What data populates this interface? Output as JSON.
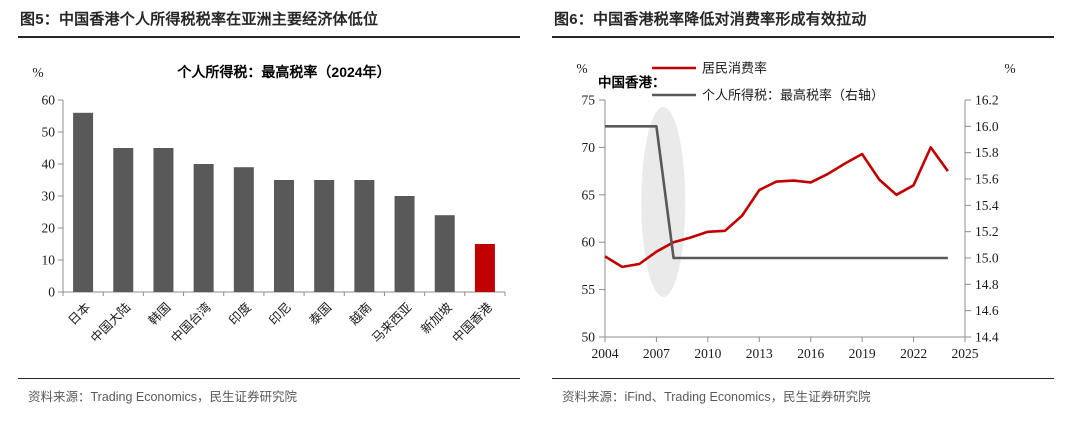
{
  "figure5": {
    "title": "图5：中国香港个人所得税税率在亚洲主要经济体低位",
    "source": "资料来源：Trading Economics，民生证券研究院"
  },
  "figure6": {
    "title": "图6：中国香港税率降低对消费率形成有效拉动",
    "source": "资料来源：iFind、Trading Economics，民生证券研究院"
  },
  "chart_data": [
    {
      "type": "bar",
      "title": "个人所得税：最高税率（2024年）",
      "unit": "%",
      "categories": [
        "日本",
        "中国大陆",
        "韩国",
        "中国台湾",
        "印度",
        "印尼",
        "泰国",
        "越南",
        "马来西亚",
        "新加坡",
        "中国香港"
      ],
      "values": [
        56,
        45,
        45,
        40,
        39,
        35,
        35,
        35,
        30,
        24,
        15
      ],
      "highlight_index": 10,
      "bar_color": "#595959",
      "highlight_color": "#c00000",
      "ylim": [
        0,
        60
      ],
      "yticks": [
        0,
        10,
        20,
        30,
        40,
        50,
        60
      ],
      "grid": false,
      "legend": "none"
    },
    {
      "type": "line",
      "annotation": "中国香港：",
      "left_unit": "%",
      "right_unit": "%",
      "x": [
        2004,
        2005,
        2006,
        2007,
        2008,
        2009,
        2010,
        2011,
        2012,
        2013,
        2014,
        2015,
        2016,
        2017,
        2018,
        2019,
        2020,
        2021,
        2022,
        2023,
        2024
      ],
      "series": [
        {
          "name": "居民消费率",
          "axis": "left",
          "color": "#c00000",
          "values": [
            58.5,
            57.4,
            57.7,
            59.0,
            60.0,
            60.5,
            61.1,
            61.2,
            62.8,
            65.5,
            66.4,
            66.5,
            66.3,
            67.2,
            68.3,
            69.3,
            66.6,
            65.0,
            66.0,
            70.0,
            67.5
          ]
        },
        {
          "name": "个人所得税：最高税率（右轴）",
          "axis": "right",
          "color": "#595959",
          "values": [
            16.0,
            16.0,
            16.0,
            16.0,
            15.0,
            15.0,
            15.0,
            15.0,
            15.0,
            15.0,
            15.0,
            15.0,
            15.0,
            15.0,
            15.0,
            15.0,
            15.0,
            15.0,
            15.0,
            15.0,
            15.0
          ]
        }
      ],
      "ylim_left": [
        50,
        75
      ],
      "yticks_left": [
        50,
        55,
        60,
        65,
        70,
        75
      ],
      "ylim_right": [
        14.4,
        16.2
      ],
      "yticks_right": [
        14.4,
        14.6,
        14.8,
        15.0,
        15.2,
        15.4,
        15.6,
        15.8,
        16.0,
        16.2
      ],
      "xlim": [
        2004,
        2025
      ],
      "xticks": [
        2004,
        2007,
        2010,
        2013,
        2016,
        2019,
        2022,
        2025
      ],
      "legend_position": "top",
      "grid": false,
      "highlight_ellipse": {
        "x_year": 2007.4
      }
    }
  ]
}
